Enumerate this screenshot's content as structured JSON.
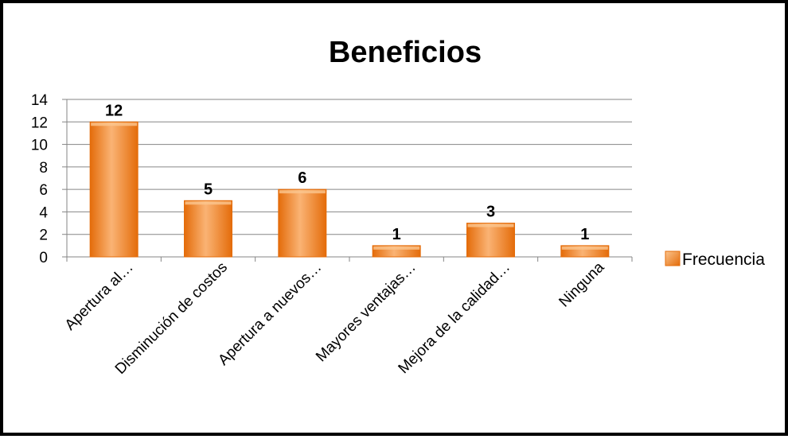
{
  "chart_data": {
    "type": "bar",
    "title": "Beneficios",
    "categories": [
      "Apertura al…",
      "Disminución de costos",
      "Apertura a nuevos…",
      "Mayores ventajas…",
      "Mejora de la calidad…",
      "Ninguna"
    ],
    "series": [
      {
        "name": "Frecuencia",
        "values": [
          12,
          5,
          6,
          1,
          3,
          1
        ]
      }
    ],
    "ylim": [
      0,
      14
    ],
    "yticks": [
      0,
      2,
      4,
      6,
      8,
      10,
      12,
      14
    ],
    "grid": true,
    "legend_position": "right",
    "colors": {
      "bar": "#F79646",
      "bar_light": "#FBC58E",
      "bar_dark": "#E46C0A",
      "grid": "#868686"
    }
  }
}
